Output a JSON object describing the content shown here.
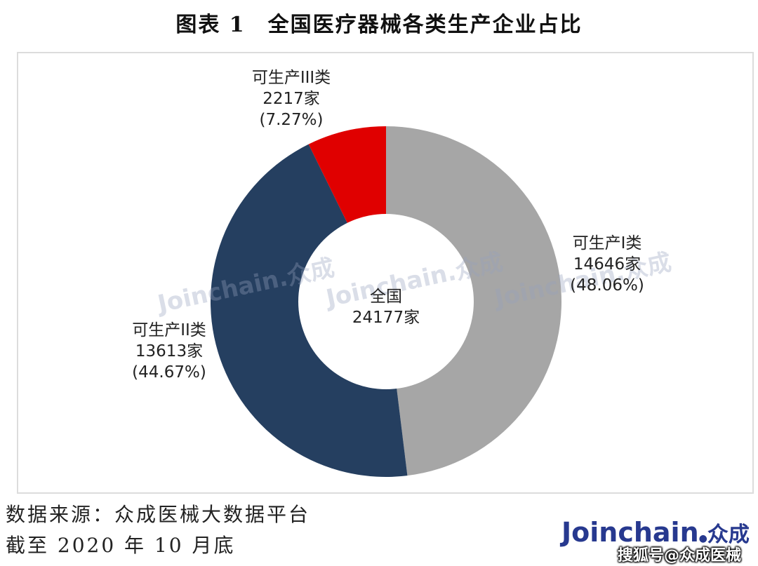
{
  "title": "图表 1　全国医疗器械各类生产企业占比",
  "center": {
    "line1": "全国",
    "line2": "24177家"
  },
  "labels": {
    "class1": {
      "name": "可生产I类",
      "count": "14646家",
      "pct": "(48.06%)"
    },
    "class2": {
      "name": "可生产II类",
      "count": "13613家",
      "pct": "(44.67%)"
    },
    "class3": {
      "name": "可生产III类",
      "count": "2217家",
      "pct": "(7.27%)"
    }
  },
  "watermark": {
    "text": "Joinchain.众成"
  },
  "footer": {
    "source": "数据来源：众成医械大数据平台",
    "date": "截至 2020 年 10 月底",
    "logo_main": "Joinchain",
    "logo_cn": "众成",
    "credit": "搜狐号@众成医械"
  },
  "colors": {
    "class1": "#a6a6a6",
    "class2": "#253f60",
    "class3": "#e00000",
    "frame": "#dcdcdc",
    "logo": "#27398f"
  },
  "chart_data": {
    "type": "pie",
    "subtype": "donut",
    "title": "图表 1　全国医疗器械各类生产企业占比",
    "center_label": "全国 24177家",
    "total": 24177,
    "categories": [
      "可生产I类",
      "可生产II类",
      "可生产III类"
    ],
    "values": [
      14646,
      13613,
      2217
    ],
    "percentages": [
      48.06,
      44.67,
      7.27
    ],
    "colors": [
      "#a6a6a6",
      "#253f60",
      "#e00000"
    ],
    "start_angle": "12 o'clock, clockwise",
    "legend": "none (direct labels)",
    "source": "数据来源：众成医械大数据平台，截至 2020 年 10 月底"
  }
}
